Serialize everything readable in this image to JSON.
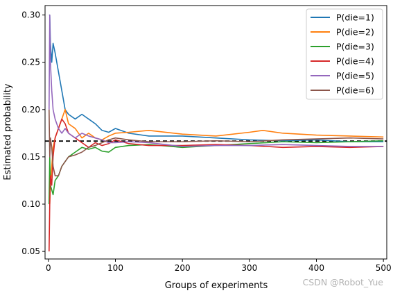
{
  "chart_data": {
    "type": "line",
    "title": "",
    "xlabel": "Groups of experiments",
    "ylabel": "Estimated probability",
    "xlim": [
      -5,
      505
    ],
    "ylim": [
      0.042,
      0.31
    ],
    "xticks": [
      0,
      100,
      200,
      300,
      400,
      500
    ],
    "yticks": [
      0.05,
      0.1,
      0.15,
      0.2,
      0.25,
      0.3
    ],
    "ytick_labels": [
      "0.05",
      "0.10",
      "0.15",
      "0.20",
      "0.25",
      "0.30"
    ],
    "grid": false,
    "legend_position": "top-right",
    "reference_line": {
      "y": 0.1667,
      "style": "dashed",
      "color": "#000000"
    },
    "series": [
      {
        "name": "P(die=1)",
        "color": "#1f77b4",
        "x": [
          1,
          2,
          3,
          5,
          7,
          10,
          15,
          20,
          25,
          30,
          40,
          50,
          60,
          70,
          80,
          90,
          100,
          120,
          150,
          200,
          250,
          300,
          350,
          400,
          450,
          500
        ],
        "values": [
          0.3,
          0.3,
          0.27,
          0.25,
          0.27,
          0.26,
          0.24,
          0.22,
          0.2,
          0.195,
          0.19,
          0.195,
          0.19,
          0.185,
          0.178,
          0.176,
          0.18,
          0.175,
          0.172,
          0.172,
          0.17,
          0.168,
          0.167,
          0.168,
          0.166,
          0.166
        ]
      },
      {
        "name": "P(die=2)",
        "color": "#ff7f0e",
        "x": [
          1,
          2,
          3,
          5,
          7,
          10,
          15,
          20,
          25,
          30,
          40,
          50,
          60,
          70,
          80,
          90,
          100,
          120,
          150,
          200,
          250,
          300,
          320,
          350,
          400,
          450,
          500
        ],
        "values": [
          0.1,
          0.1,
          0.12,
          0.14,
          0.16,
          0.17,
          0.18,
          0.19,
          0.2,
          0.185,
          0.18,
          0.17,
          0.175,
          0.17,
          0.168,
          0.172,
          0.175,
          0.176,
          0.178,
          0.174,
          0.172,
          0.176,
          0.178,
          0.175,
          0.173,
          0.172,
          0.171
        ]
      },
      {
        "name": "P(die=3)",
        "color": "#2ca02c",
        "x": [
          1,
          2,
          3,
          5,
          7,
          10,
          15,
          20,
          25,
          30,
          40,
          50,
          60,
          70,
          80,
          90,
          100,
          120,
          150,
          200,
          250,
          300,
          350,
          400,
          450,
          500
        ],
        "values": [
          0.1,
          0.15,
          0.12,
          0.115,
          0.11,
          0.125,
          0.13,
          0.14,
          0.145,
          0.15,
          0.155,
          0.16,
          0.158,
          0.16,
          0.156,
          0.155,
          0.16,
          0.162,
          0.163,
          0.16,
          0.162,
          0.164,
          0.166,
          0.165,
          0.166,
          0.167
        ]
      },
      {
        "name": "P(die=4)",
        "color": "#d62728",
        "x": [
          1,
          2,
          3,
          5,
          7,
          10,
          15,
          20,
          25,
          30,
          40,
          50,
          60,
          70,
          80,
          90,
          100,
          120,
          150,
          200,
          250,
          300,
          350,
          400,
          450,
          500
        ],
        "values": [
          0.05,
          0.1,
          0.13,
          0.12,
          0.15,
          0.17,
          0.18,
          0.19,
          0.185,
          0.175,
          0.17,
          0.165,
          0.16,
          0.165,
          0.162,
          0.164,
          0.168,
          0.164,
          0.162,
          0.162,
          0.163,
          0.162,
          0.16,
          0.161,
          0.16,
          0.161
        ]
      },
      {
        "name": "P(die=5)",
        "color": "#9467bd",
        "x": [
          1,
          2,
          3,
          5,
          7,
          10,
          15,
          20,
          25,
          30,
          40,
          50,
          60,
          70,
          80,
          90,
          100,
          120,
          150,
          200,
          250,
          300,
          350,
          400,
          450,
          500
        ],
        "values": [
          0.2,
          0.3,
          0.25,
          0.22,
          0.2,
          0.19,
          0.18,
          0.175,
          0.18,
          0.175,
          0.17,
          0.175,
          0.172,
          0.17,
          0.168,
          0.165,
          0.165,
          0.166,
          0.165,
          0.161,
          0.162,
          0.162,
          0.163,
          0.162,
          0.161,
          0.161
        ]
      },
      {
        "name": "P(die=6)",
        "color": "#8c564b",
        "x": [
          1,
          2,
          3,
          5,
          7,
          10,
          15,
          20,
          25,
          30,
          40,
          50,
          60,
          70,
          80,
          90,
          100,
          120,
          150,
          200,
          250,
          300,
          350,
          400,
          450,
          500
        ],
        "values": [
          0.2,
          0.15,
          0.17,
          0.16,
          0.14,
          0.13,
          0.13,
          0.14,
          0.145,
          0.15,
          0.152,
          0.155,
          0.16,
          0.162,
          0.165,
          0.168,
          0.17,
          0.168,
          0.166,
          0.166,
          0.167,
          0.166,
          0.168,
          0.169,
          0.17,
          0.169
        ]
      }
    ]
  },
  "watermark": "CSDN @Robot_Yue"
}
